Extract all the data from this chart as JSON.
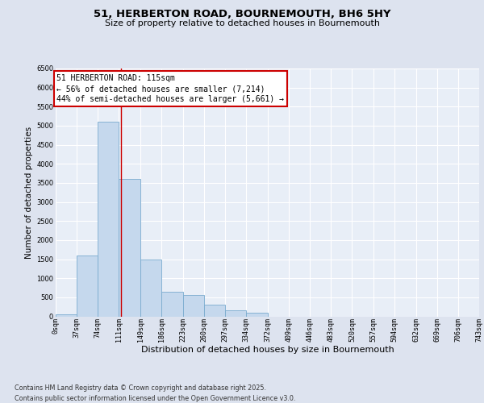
{
  "title": "51, HERBERTON ROAD, BOURNEMOUTH, BH6 5HY",
  "subtitle": "Size of property relative to detached houses in Bournemouth",
  "xlabel": "Distribution of detached houses by size in Bournemouth",
  "ylabel": "Number of detached properties",
  "bins": [
    "0sqm",
    "37sqm",
    "74sqm",
    "111sqm",
    "149sqm",
    "186sqm",
    "223sqm",
    "260sqm",
    "297sqm",
    "334sqm",
    "372sqm",
    "409sqm",
    "446sqm",
    "483sqm",
    "520sqm",
    "557sqm",
    "594sqm",
    "632sqm",
    "669sqm",
    "706sqm",
    "743sqm"
  ],
  "bin_edges": [
    0,
    37,
    74,
    111,
    149,
    186,
    223,
    260,
    297,
    334,
    372,
    409,
    446,
    483,
    520,
    557,
    594,
    632,
    669,
    706,
    743
  ],
  "values": [
    50,
    1600,
    5100,
    3600,
    1500,
    650,
    550,
    300,
    150,
    100,
    0,
    0,
    0,
    0,
    0,
    0,
    0,
    0,
    0,
    0
  ],
  "bar_color": "#c5d8ed",
  "bar_edge_color": "#7aabcf",
  "vline_x": 115,
  "vline_color": "#cc0000",
  "annotation_text": "51 HERBERTON ROAD: 115sqm\n← 56% of detached houses are smaller (7,214)\n44% of semi-detached houses are larger (5,661) →",
  "annotation_box_facecolor": "#ffffff",
  "annotation_box_edgecolor": "#cc0000",
  "ylim": [
    0,
    6500
  ],
  "yticks": [
    0,
    500,
    1000,
    1500,
    2000,
    2500,
    3000,
    3500,
    4000,
    4500,
    5000,
    5500,
    6000,
    6500
  ],
  "bg_color": "#dde3ef",
  "plot_bg_color": "#e8eef7",
  "footer": "Contains HM Land Registry data © Crown copyright and database right 2025.\nContains public sector information licensed under the Open Government Licence v3.0.",
  "title_fontsize": 9.5,
  "subtitle_fontsize": 8,
  "ylabel_fontsize": 7.5,
  "xlabel_fontsize": 8,
  "tick_fontsize": 6,
  "annotation_fontsize": 7,
  "footer_fontsize": 5.8
}
